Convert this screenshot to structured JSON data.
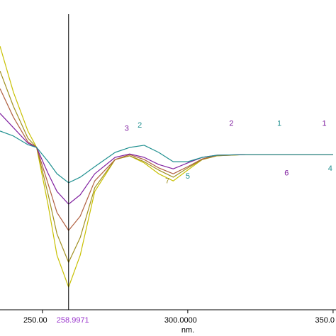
{
  "chart_data": {
    "type": "line",
    "x_label": "nm.",
    "cursor": {
      "x": 258.9971,
      "label": "258.9971",
      "color": "#9933cc"
    },
    "x": [
      235.4,
      240,
      245,
      248,
      252,
      255,
      259,
      263,
      268,
      275,
      280,
      285,
      290,
      295,
      300,
      305,
      310,
      320,
      330,
      340,
      350
    ],
    "series": [
      {
        "name": "1",
        "color": "#c8c000",
        "values": [
          85.1,
          70.3,
          57.7,
          52.4,
          33.6,
          17.6,
          7.3,
          17.6,
          38.2,
          48.5,
          49.7,
          47.4,
          43.9,
          41.6,
          45.1,
          48.5,
          49.7,
          50.1,
          50.1,
          50.1,
          50.1
        ]
      },
      {
        "name": "2",
        "color": "#a09020",
        "values": [
          77.1,
          65.7,
          55.4,
          52.4,
          37.1,
          24.5,
          15.3,
          23.3,
          39.4,
          48.5,
          49.7,
          47.8,
          45.1,
          42.8,
          45.8,
          48.5,
          49.7,
          50.1,
          50.1,
          50.1,
          50.1
        ]
      },
      {
        "name": "3",
        "color": "#b06040",
        "values": [
          71.4,
          62.2,
          54.2,
          52.4,
          40.5,
          31.4,
          25.6,
          30.2,
          41.6,
          48.5,
          50.1,
          48.5,
          45.8,
          43.9,
          46.2,
          48.7,
          49.9,
          50.1,
          50.1,
          50.1,
          50.1
        ]
      },
      {
        "name": "4",
        "color": "#8020a0",
        "values": [
          63.4,
          58.8,
          53.8,
          52.4,
          43.9,
          38.2,
          34.1,
          37.1,
          43.9,
          49.2,
          50.3,
          49.2,
          46.9,
          45.5,
          47.4,
          49.2,
          49.9,
          50.1,
          50.1,
          50.1,
          50.1
        ]
      },
      {
        "name": "5",
        "color": "#209090",
        "values": [
          57.7,
          56.1,
          53.3,
          52.4,
          47.8,
          43.9,
          41.0,
          42.8,
          46.2,
          50.8,
          52.4,
          53.1,
          50.8,
          47.8,
          47.8,
          49.2,
          49.9,
          50.1,
          50.1,
          50.1,
          50.1
        ]
      }
    ],
    "annotations": [
      {
        "text": "3",
        "x": 279,
        "y": 58.5,
        "color": "#8020a0"
      },
      {
        "text": "2",
        "x": 283.5,
        "y": 59.5,
        "color": "#209090"
      },
      {
        "text": "2",
        "x": 315,
        "y": 60,
        "color": "#8020a0"
      },
      {
        "text": "1",
        "x": 331.5,
        "y": 60,
        "color": "#209090"
      },
      {
        "text": "1",
        "x": 347,
        "y": 60,
        "color": "#8020a0"
      },
      {
        "text": "6",
        "x": 334,
        "y": 44,
        "color": "#8020a0"
      },
      {
        "text": "4",
        "x": 349,
        "y": 45.5,
        "color": "#209090"
      },
      {
        "text": "7",
        "x": 293,
        "y": 41.5,
        "color": "#a09020"
      },
      {
        "text": "5",
        "x": 300,
        "y": 43,
        "color": "#209090"
      }
    ],
    "xlim": [
      235.4,
      351
    ],
    "ylim": [
      0,
      100
    ],
    "xticks": [
      {
        "value": 250,
        "label": "250.00"
      },
      {
        "value": 300,
        "label": "300.0000"
      },
      {
        "value": 350,
        "label": "350.0"
      }
    ]
  }
}
